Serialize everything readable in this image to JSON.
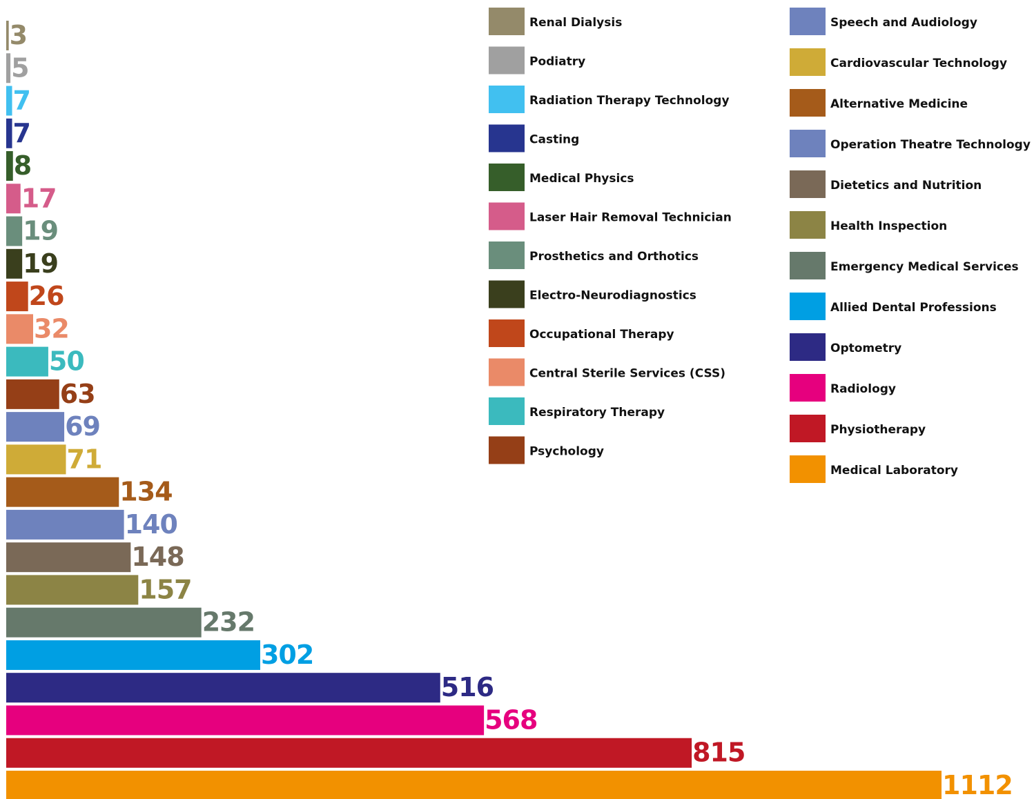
{
  "chart_data": {
    "type": "bar",
    "orientation": "horizontal",
    "categories": [
      "Renal Dialysis",
      "Podiatry",
      "Radiation Therapy Technology",
      "Casting",
      "Medical Physics",
      "Laser Hair Removal Technician",
      "Prosthetics and Orthotics",
      "Electro-Neurodiagnostics",
      "Occupational Therapy",
      "Central Sterile Services (CSS)",
      "Respiratory Therapy",
      "Psychology",
      "Speech and Audiology",
      "Cardiovascular Technology",
      "Alternative Medicine",
      "Operation Theatre Technology",
      "Dietetics and Nutrition",
      "Health Inspection",
      "Emergency Medical Services",
      "Allied Dental Professions",
      "Optometry",
      "Radiology",
      "Physiotherapy",
      "Medical Laboratory"
    ],
    "values": [
      3,
      5,
      7,
      7,
      8,
      17,
      19,
      19,
      26,
      32,
      50,
      63,
      69,
      71,
      134,
      140,
      148,
      157,
      232,
      302,
      516,
      568,
      815,
      1112
    ],
    "colors": [
      "#948a6a",
      "#a0a0a0",
      "#41c0f0",
      "#27358f",
      "#365e2a",
      "#d55c8a",
      "#6a8e7c",
      "#3a3f1d",
      "#c0471b",
      "#ea8a68",
      "#3bbabe",
      "#953f17",
      "#6e82bd",
      "#cfab37",
      "#a55b1a",
      "#6e82bd",
      "#7a6957",
      "#8c8445",
      "#66796b",
      "#009fe3",
      "#2d2a84",
      "#e6007e",
      "#c01825",
      "#f29100"
    ],
    "legend": "top-right"
  }
}
